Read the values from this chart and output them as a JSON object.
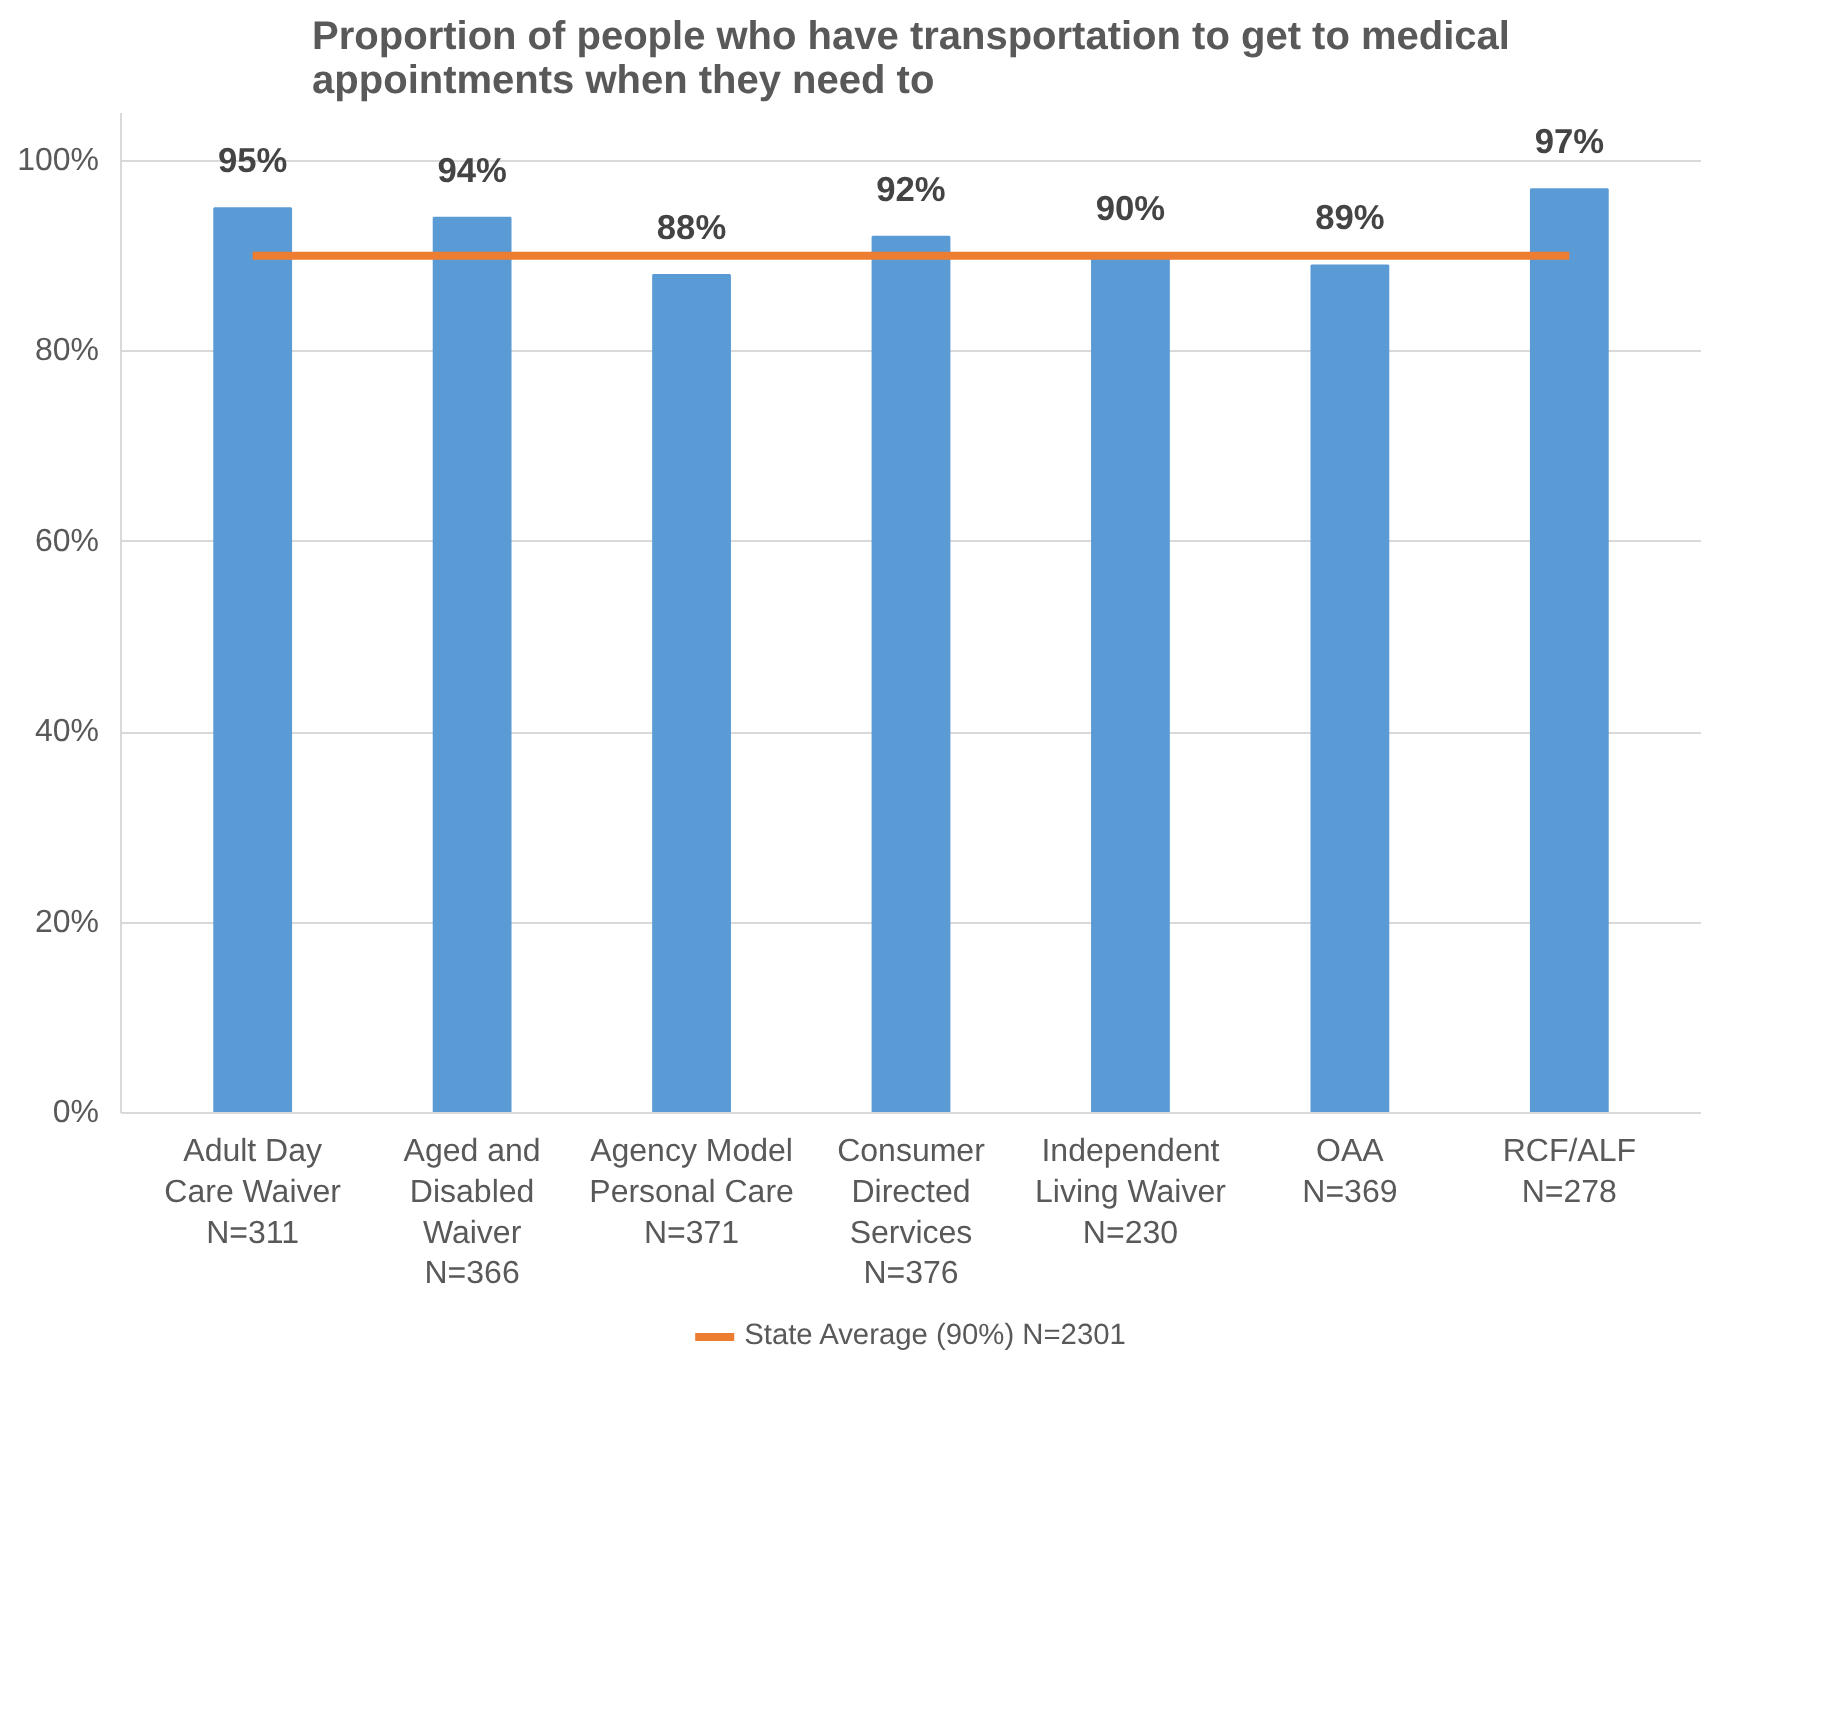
{
  "chart_data": {
    "type": "bar",
    "title": "Proportion of people who have transportation to get to medical\nappointments when they need to",
    "categories": [
      "Adult Day\nCare Waiver\nN=311",
      "Aged and\nDisabled\nWaiver\nN=366",
      "Agency Model\nPersonal Care\nN=371",
      "Consumer\nDirected\nServices\nN=376",
      "Independent\nLiving Waiver\nN=230",
      "OAA\nN=369",
      "RCF/ALF\nN=278"
    ],
    "series": [
      {
        "color": "#5b9bd5",
        "values": [
          95,
          94,
          88,
          92,
          90,
          89,
          97
        ],
        "value_labels": [
          "95%",
          "94%",
          "88%",
          "92%",
          "90%",
          "89%",
          "97%"
        ]
      },
      {
        "type": "line",
        "name": "State Average (90%) N=2301",
        "color": "#ed7d31",
        "values": [
          90,
          90,
          90,
          90,
          90,
          90,
          90
        ]
      }
    ],
    "ylim": [
      0,
      105
    ],
    "yticks": [
      {
        "value": 0,
        "label": "0%"
      },
      {
        "value": 20,
        "label": "20%"
      },
      {
        "value": 40,
        "label": "40%"
      },
      {
        "value": 60,
        "label": "60%"
      },
      {
        "value": 80,
        "label": "80%"
      },
      {
        "value": 100,
        "label": "100%"
      }
    ],
    "grid": "y",
    "legend": "bottom"
  }
}
